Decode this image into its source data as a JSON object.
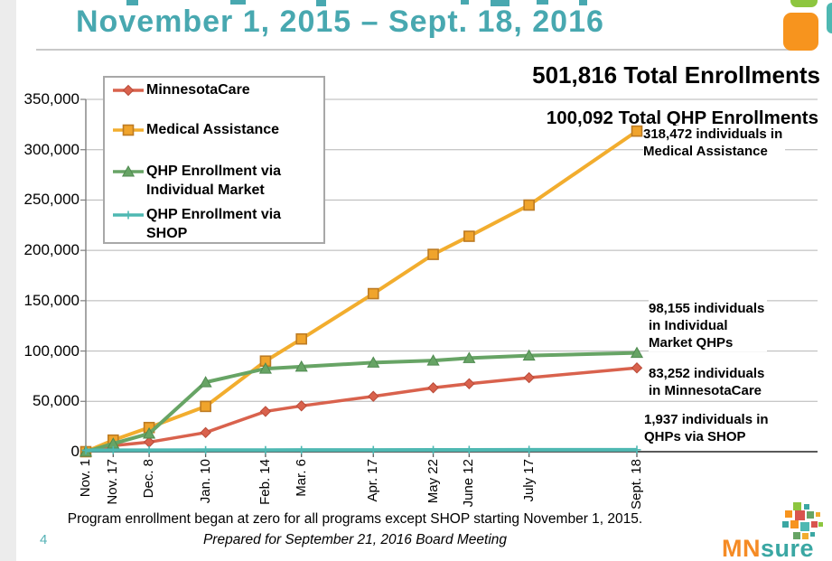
{
  "slide": {
    "title": "November 1, 2015 – Sept. 18, 2016",
    "title_color": "#48a8b0",
    "page_number": "4",
    "footnote": "Program enrollment began at zero for all programs except SHOP starting November 1, 2015.",
    "prepared_note": "Prepared for September 21, 2016 Board Meeting",
    "logo": {
      "mn": "MN",
      "sure": "sure"
    }
  },
  "headline": {
    "total_enrollments": "501,816 Total Enrollments",
    "total_qhp": "100,092 Total QHP Enrollments"
  },
  "chart_data": {
    "type": "line",
    "title": "",
    "xlabel": "",
    "ylabel": "",
    "ylim": [
      0,
      350000
    ],
    "grid": true,
    "legend_position": "top-left",
    "x_labels": [
      "Nov. 1",
      "Nov. 17",
      "Dec. 8",
      "Jan. 10",
      "Feb. 14",
      "Mar. 6",
      "Apr. 17",
      "May 22",
      "June 12",
      "July 17",
      "Sept. 18"
    ],
    "x_days": [
      0,
      16,
      37,
      70,
      105,
      126,
      168,
      203,
      224,
      259,
      322
    ],
    "y_ticks": [
      "0",
      "50,000",
      "100,000",
      "150,000",
      "200,000",
      "250,000",
      "300,000",
      "350,000"
    ],
    "series": [
      {
        "name": "MinnesotaCare",
        "color": "#d9624d",
        "marker": "diamond",
        "marker_fill": "#d9624d",
        "marker_stroke": "#b84a38",
        "line_width": 3.5,
        "values": [
          0,
          6000,
          9500,
          19000,
          40000,
          45500,
          55000,
          63500,
          67500,
          73500,
          83252
        ]
      },
      {
        "name": "Medical Assistance",
        "color": "#f2ad2e",
        "marker": "square",
        "marker_fill": "#f0a42c",
        "marker_stroke": "#bd7b23",
        "line_width": 4,
        "values": [
          0,
          11500,
          24000,
          45000,
          90000,
          112000,
          157000,
          196000,
          214000,
          245000,
          318472
        ]
      },
      {
        "name": "QHP Enrollment via Individual Market",
        "color": "#67a465",
        "marker": "triangle",
        "marker_fill": "#67a465",
        "marker_stroke": "#4f8a50",
        "line_width": 4,
        "values": [
          0,
          8000,
          18000,
          69000,
          82500,
          84500,
          88500,
          90500,
          93000,
          95500,
          98155
        ]
      },
      {
        "name": "QHP Enrollment via SHOP",
        "color": "#4eb8b2",
        "marker": "plus",
        "marker_fill": "#4eb8b2",
        "marker_stroke": "#4eb8b2",
        "line_width": 4,
        "values": [
          1400,
          1450,
          1500,
          1550,
          1600,
          1650,
          1700,
          1750,
          1800,
          1870,
          1937
        ]
      }
    ],
    "annotations": [
      {
        "lines": [
          "318,472 individuals in",
          "Medical Assistance"
        ]
      },
      {
        "lines": [
          "98,155 individuals",
          "in Individual",
          "Market QHPs"
        ]
      },
      {
        "lines": [
          "83,252 individuals",
          "in MinnesotaCare"
        ]
      },
      {
        "lines": [
          "1,937 individuals in",
          "QHPs via SHOP"
        ]
      }
    ]
  }
}
